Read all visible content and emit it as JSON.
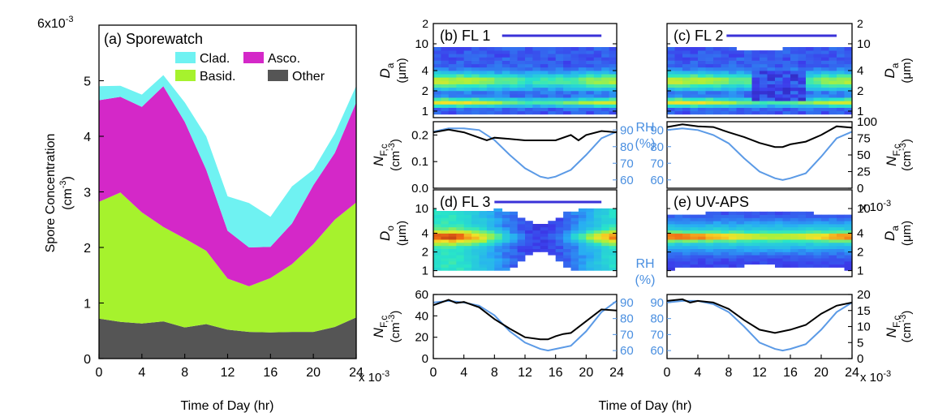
{
  "colors": {
    "clad": "#6ff2f2",
    "asco": "#d428c8",
    "basid": "#a6f22d",
    "other": "#555555",
    "rh_line": "#5b9ae6",
    "concentration_line": "#000000"
  },
  "figure": {
    "x_title": "Time of Day (hr)",
    "rh_label_top": "RH",
    "rh_label_bottom": "(%)",
    "multiplier_1e3": "x 10"
  },
  "chart_data": [
    {
      "id": "a",
      "type": "area",
      "panel_title": "(a) Sporewatch",
      "ylabel": "Spore Concentration",
      "yunit": "(cm",
      "yunit_exp": "-3",
      "yunit_close": ")",
      "xlabel": "Time of Day (hr)",
      "y_top_label": "6x10",
      "y_top_exp": "-3",
      "xlim": [
        0,
        24
      ],
      "ylim": [
        0,
        6
      ],
      "xticks": [
        0,
        4,
        8,
        12,
        16,
        20,
        24
      ],
      "yticks": [
        0,
        1,
        2,
        3,
        4,
        5
      ],
      "x": [
        0,
        2,
        4,
        6,
        8,
        10,
        12,
        14,
        16,
        18,
        20,
        22,
        24
      ],
      "stacked": true,
      "series": [
        {
          "name": "Other",
          "key": "other",
          "values": [
            0.72,
            0.66,
            0.63,
            0.67,
            0.56,
            0.62,
            0.52,
            0.48,
            0.47,
            0.48,
            0.48,
            0.57,
            0.74
          ]
        },
        {
          "name": "Basid.",
          "key": "basid",
          "values": [
            2.1,
            2.33,
            2.0,
            1.7,
            1.6,
            1.32,
            0.92,
            0.82,
            0.98,
            1.22,
            1.58,
            1.93,
            2.07
          ]
        },
        {
          "name": "Asco.",
          "key": "asco",
          "values": [
            1.83,
            1.72,
            1.9,
            2.53,
            2.1,
            1.46,
            0.86,
            0.7,
            0.56,
            0.73,
            1.06,
            1.2,
            1.8
          ]
        },
        {
          "name": "Clad.",
          "key": "clad",
          "values": [
            0.25,
            0.2,
            0.22,
            0.2,
            0.35,
            0.6,
            0.62,
            0.8,
            0.54,
            0.67,
            0.28,
            0.35,
            0.3
          ]
        }
      ],
      "legend": {
        "placement": "top-right",
        "order": [
          "Clad.",
          "Asco.",
          "Basid.",
          "Other"
        ]
      }
    },
    {
      "id": "b",
      "type": "heatmap",
      "panel_title": "(b) FL 1",
      "ylabel_symbol": "D",
      "ylabel_sub": "a",
      "ylabel_unit": "(μm)",
      "scale": "log",
      "ylim": [
        0.8,
        20
      ],
      "yticks": [
        1,
        2,
        4,
        10
      ],
      "yticks_right": [],
      "extra_tick_label": "2",
      "band_main": [
        1.15,
        1.55
      ],
      "band_dense": [
        0.95,
        9
      ],
      "rh_bar_hours": [
        [
          9,
          22
        ]
      ],
      "intensity_shape": "low-dense"
    },
    {
      "id": "b2",
      "type": "line",
      "ylabel_symbol": "N",
      "ylabel_sub": "F,c",
      "ylabel_unit": "(cm",
      "ylabel_unit_exp": "-3",
      "ylabel_unit_close": ")",
      "ylim": [
        0,
        0.25
      ],
      "yticks": [
        0.0,
        0.1,
        0.2
      ],
      "ytick_labels": [
        "0.0",
        "0.1",
        "0.2"
      ],
      "rh_ylim": [
        55,
        95
      ],
      "rh_yticks": [
        60,
        70,
        80,
        90
      ],
      "x": [
        0,
        2,
        4,
        6,
        7,
        8,
        10,
        12,
        14,
        16,
        18,
        19,
        20,
        22,
        24
      ],
      "concentration": [
        0.21,
        0.22,
        0.21,
        0.19,
        0.18,
        0.19,
        0.185,
        0.18,
        0.18,
        0.18,
        0.2,
        0.18,
        0.2,
        0.215,
        0.21
      ],
      "rh_x": [
        0,
        2,
        4,
        6,
        8,
        10,
        12,
        14,
        15,
        16,
        18,
        20,
        22,
        24
      ],
      "rh": [
        89,
        91,
        91,
        90,
        84,
        75,
        67,
        62,
        61,
        62,
        66,
        75,
        85,
        89
      ]
    },
    {
      "id": "c",
      "type": "heatmap",
      "panel_title": "(c) FL 2",
      "ylabel_symbol": "D",
      "ylabel_sub": "a",
      "ylabel_unit": "(μm)",
      "scale": "log",
      "ylim": [
        0.8,
        20
      ],
      "yticks_right": [
        1,
        2,
        4,
        10
      ],
      "extra_tick_label": "2",
      "rh_bar_hours": [
        [
          3.5,
          22
        ]
      ],
      "intensity_shape": "low-dense-wide"
    },
    {
      "id": "c2",
      "type": "line",
      "ylabel_symbol": "N",
      "ylabel_sub": "F,c",
      "ylabel_unit": "(cm",
      "ylabel_unit_exp": "-3",
      "ylabel_unit_close": ")",
      "multiplier_exp": "-3",
      "ylim": [
        0,
        100
      ],
      "yticks": [
        0,
        25,
        50,
        75,
        100
      ],
      "x": [
        0,
        2,
        4,
        6,
        8,
        10,
        12,
        14,
        15,
        16,
        18,
        20,
        22,
        24
      ],
      "concentration": [
        92,
        96,
        93,
        92,
        84,
        77,
        68,
        62,
        62,
        66,
        70,
        80,
        93,
        91
      ],
      "rh_x": [
        0,
        2,
        4,
        6,
        8,
        10,
        12,
        14,
        15,
        16,
        18,
        20,
        22,
        24
      ],
      "rh": [
        90,
        91,
        90,
        87,
        82,
        73,
        65,
        61,
        60,
        61,
        64,
        74,
        85,
        89
      ],
      "rh_ylim": [
        55,
        95
      ]
    },
    {
      "id": "d",
      "type": "heatmap",
      "panel_title": "(d) FL 3",
      "ylabel_symbol": "D",
      "ylabel_sub": "o",
      "ylabel_unit": "(μm)",
      "scale": "log",
      "ylim": [
        0.8,
        20
      ],
      "yticks": [
        1,
        2,
        4,
        10
      ],
      "rh_bar_hours": [
        [
          8,
          22
        ]
      ],
      "intensity_shape": "mid-dip"
    },
    {
      "id": "d2",
      "type": "line",
      "ylabel_symbol": "N",
      "ylabel_sub": "F,c",
      "ylabel_unit": "(cm",
      "ylabel_unit_exp": "-3",
      "ylabel_unit_close": ")",
      "multiplier_exp": "-3",
      "ylim": [
        0,
        60
      ],
      "yticks": [
        0,
        20,
        40,
        60
      ],
      "rh_ylim": [
        55,
        95
      ],
      "rh_yticks": [
        60,
        70,
        80,
        90
      ],
      "xticks": [
        0,
        4,
        8,
        12,
        16,
        20,
        24
      ],
      "x": [
        0,
        2,
        3,
        4,
        6,
        8,
        10,
        12,
        14,
        15,
        16,
        17,
        18,
        20,
        22,
        24
      ],
      "concentration": [
        50,
        55,
        52,
        53,
        48,
        37,
        28,
        20,
        18,
        18,
        21,
        23,
        24,
        35,
        46,
        45
      ],
      "rh_x": [
        0,
        2,
        4,
        6,
        8,
        10,
        12,
        14,
        15,
        16,
        18,
        20,
        22,
        24
      ],
      "rh": [
        90,
        91,
        90,
        88,
        82,
        72,
        65,
        61,
        60,
        61,
        63,
        72,
        84,
        91
      ]
    },
    {
      "id": "e",
      "type": "heatmap",
      "panel_title": "(e) UV-APS",
      "ylabel_symbol": "D",
      "ylabel_sub": "a",
      "ylabel_unit": "(μm)",
      "scale": "log",
      "ylim": [
        0.8,
        20
      ],
      "yticks_right": [
        1,
        2,
        4,
        10
      ],
      "intensity_shape": "wide"
    },
    {
      "id": "e2",
      "type": "line",
      "ylabel_symbol": "N",
      "ylabel_sub": "F,c",
      "ylabel_unit": "(cm",
      "ylabel_unit_exp": "-3",
      "ylabel_unit_close": ")",
      "multiplier_exp": "-3",
      "ylim": [
        0,
        20
      ],
      "yticks": [
        0,
        5,
        10,
        15,
        20
      ],
      "xticks": [
        0,
        4,
        8,
        12,
        16,
        20,
        24
      ],
      "x": [
        0,
        2,
        3,
        4,
        6,
        8,
        10,
        12,
        14,
        16,
        18,
        20,
        22,
        24
      ],
      "concentration": [
        18,
        18.5,
        17.5,
        18,
        17.5,
        15.5,
        12,
        9,
        8,
        9,
        10.5,
        14,
        16.5,
        17.5
      ],
      "rh_x": [
        0,
        2,
        4,
        6,
        8,
        10,
        12,
        14,
        15,
        16,
        18,
        20,
        22,
        24
      ],
      "rh": [
        90,
        91,
        91,
        89,
        84,
        75,
        65,
        61,
        60,
        61,
        64,
        73,
        84,
        90
      ]
    }
  ]
}
